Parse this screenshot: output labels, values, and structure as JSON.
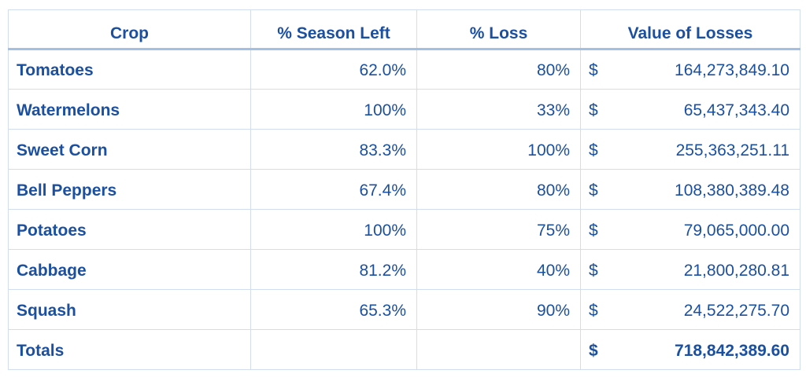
{
  "colors": {
    "text_blue": "#1b4f9f",
    "gridline": "#d2ddef",
    "header_rule": "#a3bfe3"
  },
  "table": {
    "headers": [
      "Crop",
      "% Season Left",
      "% Loss",
      "Value of Losses"
    ],
    "rows": [
      {
        "crop": "Tomatoes",
        "season_left": "62.0%",
        "loss": "80%",
        "currency": "$",
        "value": "164,273,849.10"
      },
      {
        "crop": "Watermelons",
        "season_left": "100%",
        "loss": "33%",
        "currency": "$",
        "value": "65,437,343.40"
      },
      {
        "crop": "Sweet Corn",
        "season_left": "83.3%",
        "loss": "100%",
        "currency": "$",
        "value": "255,363,251.11"
      },
      {
        "crop": "Bell Peppers",
        "season_left": "67.4%",
        "loss": "80%",
        "currency": "$",
        "value": "108,380,389.48"
      },
      {
        "crop": "Potatoes",
        "season_left": "100%",
        "loss": "75%",
        "currency": "$",
        "value": "79,065,000.00"
      },
      {
        "crop": "Cabbage",
        "season_left": "81.2%",
        "loss": "40%",
        "currency": "$",
        "value": "21,800,280.81"
      },
      {
        "crop": "Squash",
        "season_left": "65.3%",
        "loss": "90%",
        "currency": "$",
        "value": "24,522,275.70"
      }
    ],
    "totals": {
      "label": "Totals",
      "season_left": "",
      "loss": "",
      "currency": "$",
      "value": "718,842,389.60"
    }
  },
  "chart_data": {
    "type": "table",
    "columns": [
      "Crop",
      "% Season Left",
      "% Loss",
      "Value of Losses"
    ],
    "rows": [
      [
        "Tomatoes",
        62.0,
        80,
        164273849.1
      ],
      [
        "Watermelons",
        100,
        33,
        65437343.4
      ],
      [
        "Sweet Corn",
        83.3,
        100,
        255363251.11
      ],
      [
        "Bell Peppers",
        67.4,
        80,
        108380389.48
      ],
      [
        "Potatoes",
        100,
        75,
        79065000.0
      ],
      [
        "Cabbage",
        81.2,
        40,
        21800280.81
      ],
      [
        "Squash",
        65.3,
        90,
        24522275.7
      ]
    ],
    "totals": {
      "label": "Totals",
      "value_of_losses": 718842389.6
    },
    "units": {
      "season_left": "percent",
      "loss": "percent",
      "value_of_losses": "USD"
    }
  }
}
